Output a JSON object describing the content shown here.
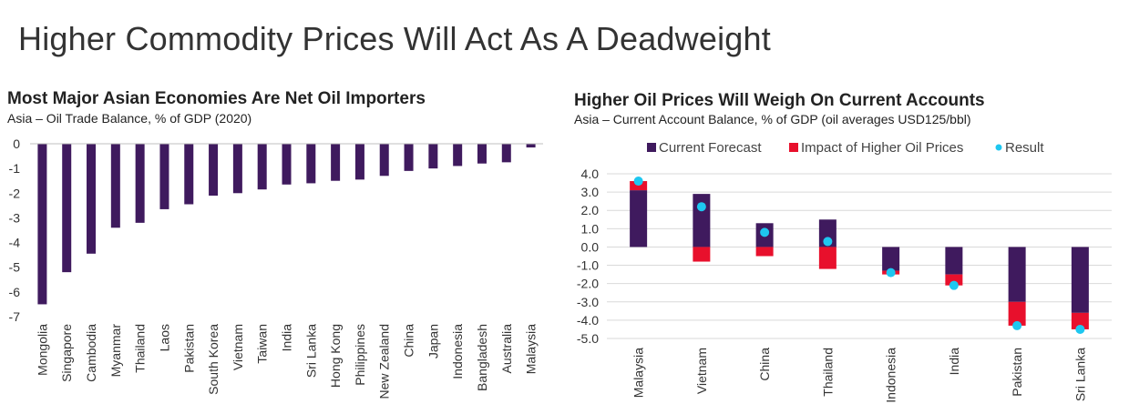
{
  "page": {
    "title": "Higher Commodity Prices Will Act As A Deadweight"
  },
  "colors": {
    "purple": "#3F1A5E",
    "red": "#E8102C",
    "cyan": "#1EC7F0",
    "grid": "#D9D9D9",
    "axis": "#595959"
  },
  "left_panel": {
    "title": "Most Major Asian Economies Are Net Oil Importers",
    "subtitle": "Asia – Oil Trade Balance, % of GDP (2020)"
  },
  "right_panel": {
    "title": "Higher Oil Prices Will Weigh On Current Accounts",
    "subtitle": "Asia – Current Account Balance, % of GDP (oil averages USD125/bbl)"
  },
  "chart_data": [
    {
      "type": "bar",
      "title": "Most Major Asian Economies Are Net Oil Importers",
      "subtitle": "Asia – Oil Trade Balance, % of GDP (2020)",
      "categories": [
        "Mongolia",
        "Singapore",
        "Cambodia",
        "Myanmar",
        "Thailand",
        "Laos",
        "Pakistan",
        "South Korea",
        "Vietnam",
        "Taiwan",
        "India",
        "Sri Lanka",
        "Hong Kong",
        "Philippines",
        "New Zealand",
        "China",
        "Japan",
        "Indonesia",
        "Bangladesh",
        "Australia",
        "Malaysia"
      ],
      "values": [
        -6.5,
        -5.2,
        -4.45,
        -3.4,
        -3.2,
        -2.65,
        -2.45,
        -2.1,
        -2.0,
        -1.85,
        -1.65,
        -1.6,
        -1.5,
        -1.45,
        -1.3,
        -1.1,
        -1.0,
        -0.9,
        -0.8,
        -0.75,
        -0.15
      ],
      "yticks": [
        "0",
        "-1",
        "-2",
        "-3",
        "-4",
        "-5",
        "-6",
        "-7"
      ],
      "ylim": [
        -7,
        0
      ],
      "grid": false,
      "xlabel": "",
      "ylabel": ""
    },
    {
      "type": "bar",
      "stacked": true,
      "title": "Higher Oil Prices Will Weigh On Current Accounts",
      "subtitle": "Asia – Current Account Balance, % of GDP (oil averages USD125/bbl)",
      "categories": [
        "Malaysia",
        "Vietnam",
        "China",
        "Thailand",
        "Indonesia",
        "India",
        "Pakistan",
        "Sri Lanka"
      ],
      "series": [
        {
          "name": "Current Forecast",
          "values": [
            3.1,
            2.9,
            1.3,
            1.5,
            -1.3,
            -1.5,
            -3.0,
            -3.6
          ]
        },
        {
          "name": "Impact of Higher Oil Prices",
          "values": [
            0.5,
            -0.8,
            -0.5,
            -1.2,
            -0.2,
            -0.6,
            -1.3,
            -0.9
          ]
        },
        {
          "name": "Result",
          "type": "scatter",
          "values": [
            3.6,
            2.2,
            0.8,
            0.3,
            -1.4,
            -2.1,
            -4.3,
            -4.5
          ]
        }
      ],
      "yticks": [
        "4.0",
        "3.0",
        "2.0",
        "1.0",
        "0.0",
        "-1.0",
        "-2.0",
        "-3.0",
        "-4.0",
        "-5.0"
      ],
      "ylim": [
        -5,
        4
      ],
      "grid": true,
      "legend": "top",
      "xlabel": "",
      "ylabel": ""
    }
  ]
}
